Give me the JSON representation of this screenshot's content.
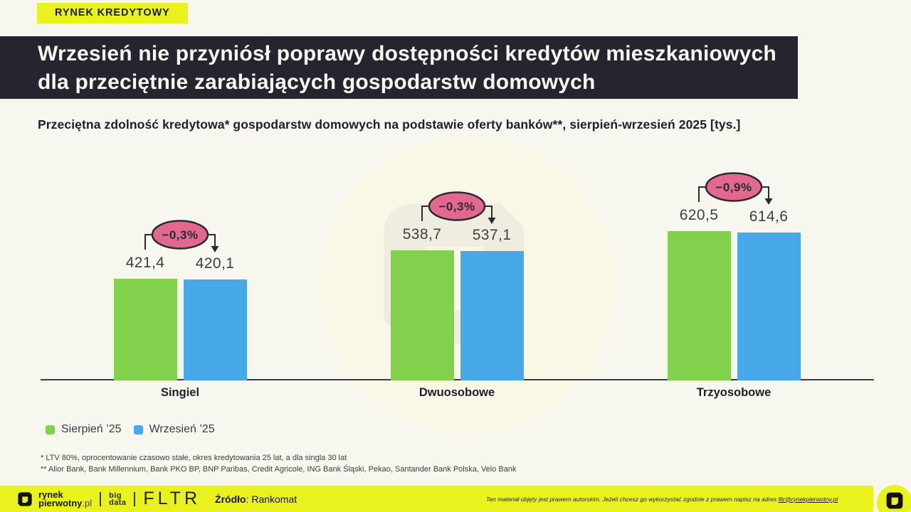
{
  "badge": {
    "label": "RYNEK KREDYTOWY"
  },
  "title": {
    "line1": "Wrzesień nie przyniósł poprawy dostępności kredytów mieszkaniowych",
    "line2": "dla przeciętnie zarabiających gospodarstw domowych"
  },
  "subtitle": "Przeciętna zdolność kredytowa* gospodarstw domowych na podstawie oferty banków**, sierpień-wrzesień 2025 [tys.]",
  "chart_data": {
    "type": "bar",
    "title": "Przeciętna zdolność kredytowa gospodarstw domowych, sierpień-wrzesień 2025 [tys.]",
    "categories": [
      "Singiel",
      "Dwuosobowe",
      "Trzyosobowe"
    ],
    "series": [
      {
        "name": "Sierpień ’25",
        "color": "#82d14d",
        "values": [
          421.4,
          538.7,
          620.5
        ],
        "labels": [
          "421,4",
          "538,7",
          "620,5"
        ]
      },
      {
        "name": "Wrzesień ’25",
        "color": "#47a9e8",
        "values": [
          420.1,
          537.1,
          614.6
        ],
        "labels": [
          "420,1",
          "537,1",
          "614,6"
        ]
      }
    ],
    "change_badges": [
      "−0,3%",
      "−0,3%",
      "−0,9%"
    ],
    "badge_fill": "#e2688f",
    "badge_stroke": "#2b2a33",
    "unit": "tys.",
    "ylim": [
      0,
      650
    ],
    "grid": false,
    "legend_position": "bottom-left"
  },
  "footnotes": [
    "* LTV 80%, oprocentowanie czasowo stałe, okres kredytowania 25 lat, a dla singla 30 lat",
    "** Alior Bank, Bank Millennium, Bank PKO BP, BNP Paribas, Credit Agricole, ING Bank Śląski, Pekao, Santander Bank Polska, Velo Bank"
  ],
  "footer": {
    "brand_line1": "rynek",
    "brand_line2": "pierwotny",
    "brand_line2_suffix": ".pl",
    "bigdata_line1": "big",
    "bigdata_line2": "data",
    "fltr": "FLTR",
    "source_label": "Źródło",
    "source_value": ": Rankomat",
    "copyright_text": "Ten materiał objęty jest prawem autorskim. Jeżeli chcesz go wykorzystać zgodnie z prawem napisz na adres ",
    "copyright_link": "fltr@rynekpierwotny.pl"
  },
  "colors": {
    "background": "#f7f6ef",
    "accent_yellow": "#eaf21e",
    "header_dark": "#25242f",
    "green": "#82d14d",
    "blue": "#47a9e8",
    "pink": "#e2688f"
  }
}
